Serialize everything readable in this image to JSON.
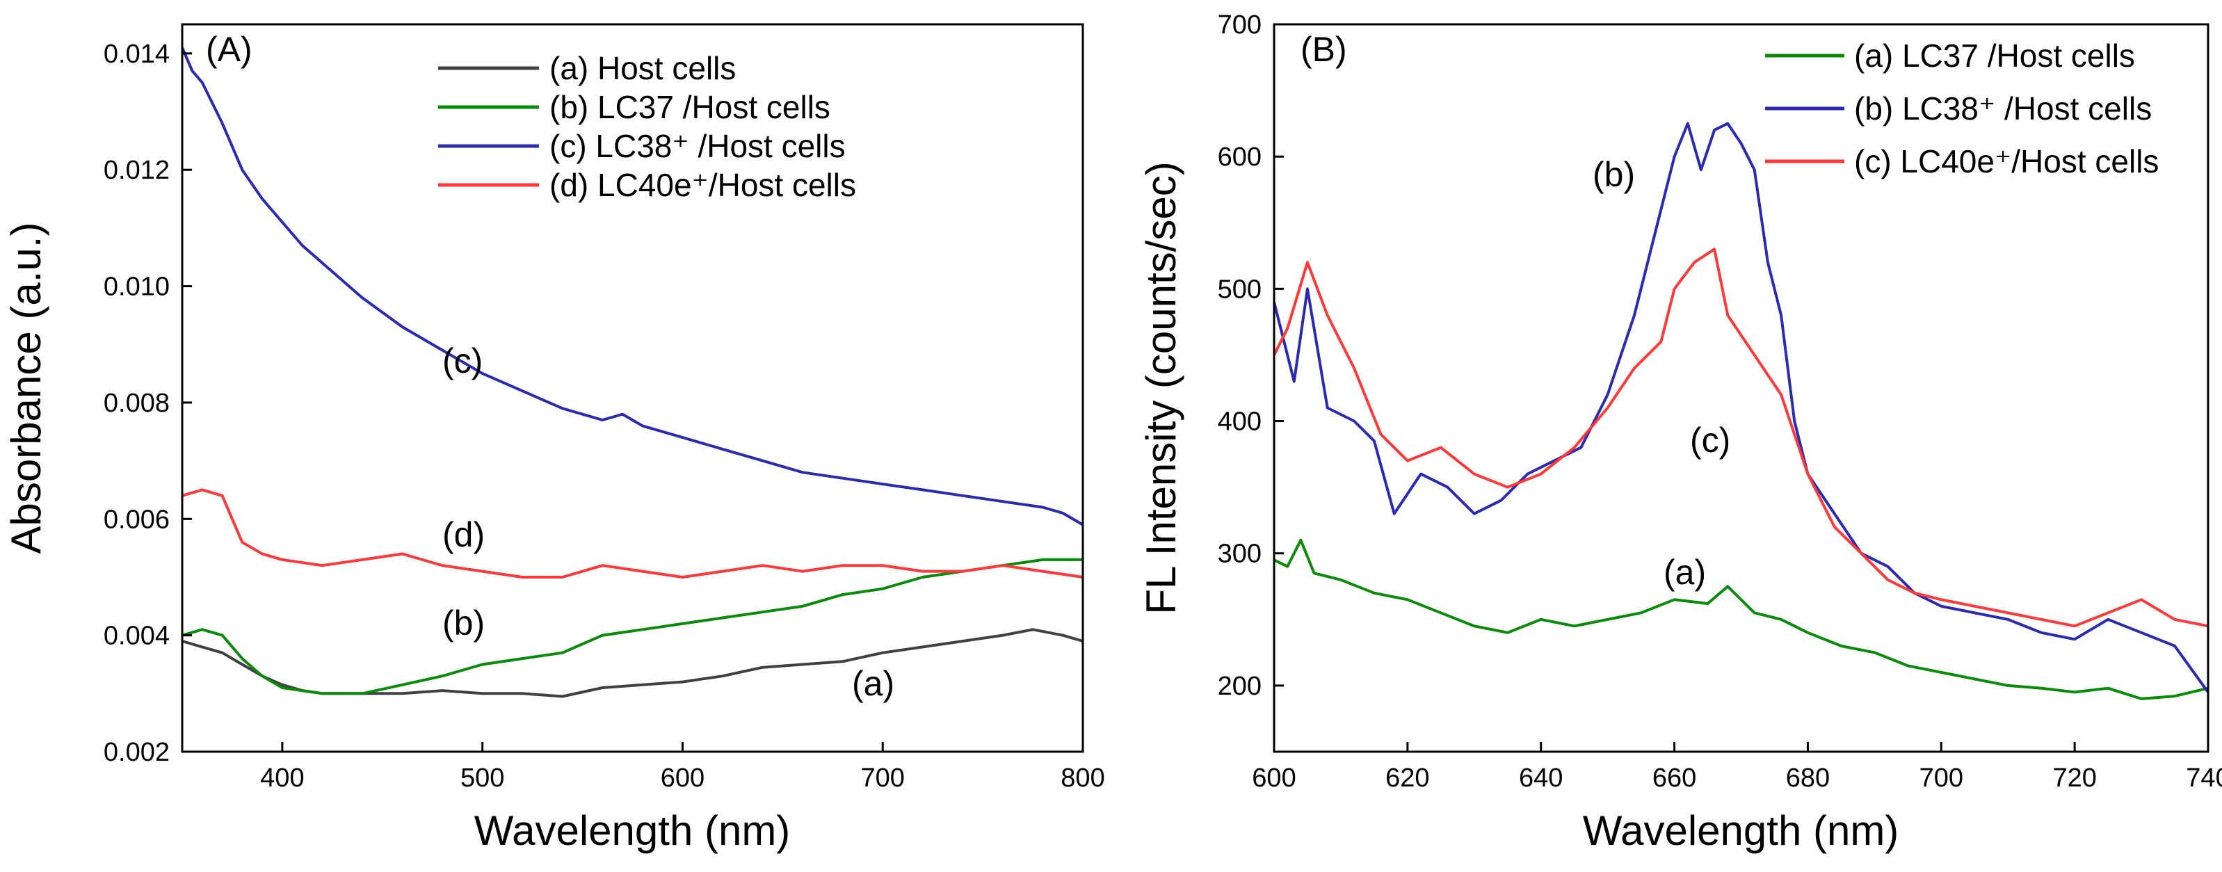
{
  "chart_data": [
    {
      "type": "line",
      "panel_label": "(A)",
      "xlabel": "Wavelength (nm)",
      "ylabel": "Absorbance (a.u.)",
      "xlim": [
        350,
        800
      ],
      "ylim": [
        0.002,
        0.0145
      ],
      "xticks": [
        400,
        500,
        600,
        700,
        800
      ],
      "xtick_labels": [
        "400",
        "500",
        "600",
        "700",
        "800"
      ],
      "yticks": [
        0.002,
        0.004,
        0.006,
        0.008,
        0.01,
        0.012,
        0.014
      ],
      "ytick_labels": [
        "0.002",
        "0.004",
        "0.006",
        "0.008",
        "0.010",
        "0.012",
        "0.014"
      ],
      "legend_position": "top-right",
      "series": [
        {
          "name": "(a) Host cells",
          "color": "#404040",
          "annotation": "(a)",
          "x": [
            350,
            360,
            370,
            380,
            390,
            400,
            410,
            420,
            440,
            460,
            480,
            500,
            520,
            540,
            560,
            580,
            600,
            620,
            640,
            660,
            680,
            700,
            720,
            740,
            760,
            775,
            790,
            800
          ],
          "y": [
            0.0039,
            0.0038,
            0.0037,
            0.0035,
            0.0033,
            0.00315,
            0.00305,
            0.003,
            0.003,
            0.003,
            0.00305,
            0.003,
            0.003,
            0.00295,
            0.0031,
            0.00315,
            0.0032,
            0.0033,
            0.00345,
            0.0035,
            0.00355,
            0.0037,
            0.0038,
            0.0039,
            0.004,
            0.0041,
            0.004,
            0.0039
          ]
        },
        {
          "name": "(b) LC37 /Host cells",
          "color": "#0a8a0a",
          "annotation": "(b)",
          "x": [
            350,
            360,
            370,
            380,
            390,
            400,
            410,
            420,
            440,
            460,
            480,
            500,
            520,
            540,
            560,
            580,
            600,
            620,
            640,
            660,
            680,
            700,
            720,
            740,
            760,
            780,
            800
          ],
          "y": [
            0.004,
            0.0041,
            0.004,
            0.0036,
            0.0033,
            0.0031,
            0.00305,
            0.003,
            0.003,
            0.00315,
            0.0033,
            0.0035,
            0.0036,
            0.0037,
            0.004,
            0.0041,
            0.0042,
            0.0043,
            0.0044,
            0.0045,
            0.0047,
            0.0048,
            0.005,
            0.0051,
            0.0052,
            0.0053,
            0.0053
          ]
        },
        {
          "name": "(c) LC38⁺ /Host cells",
          "color": "#2b2bb0",
          "annotation": "(c)",
          "x": [
            350,
            355,
            360,
            370,
            380,
            390,
            400,
            410,
            420,
            440,
            460,
            480,
            500,
            520,
            540,
            560,
            570,
            580,
            600,
            620,
            640,
            660,
            680,
            700,
            720,
            740,
            760,
            780,
            790,
            800
          ],
          "y": [
            0.0141,
            0.0137,
            0.0135,
            0.0128,
            0.012,
            0.0115,
            0.0111,
            0.0107,
            0.0104,
            0.0098,
            0.0093,
            0.0089,
            0.0085,
            0.0082,
            0.0079,
            0.0077,
            0.0078,
            0.0076,
            0.0074,
            0.0072,
            0.007,
            0.0068,
            0.0067,
            0.0066,
            0.0065,
            0.0064,
            0.0063,
            0.0062,
            0.0061,
            0.0059
          ]
        },
        {
          "name": "(d) LC40e⁺/Host cells",
          "color": "#ff3a3a",
          "annotation": "(d)",
          "x": [
            350,
            360,
            370,
            375,
            380,
            390,
            400,
            420,
            440,
            460,
            480,
            500,
            520,
            540,
            560,
            580,
            600,
            620,
            640,
            660,
            680,
            700,
            720,
            740,
            760,
            780,
            800
          ],
          "y": [
            0.0064,
            0.0065,
            0.0064,
            0.006,
            0.0056,
            0.0054,
            0.0053,
            0.0052,
            0.0053,
            0.0054,
            0.0052,
            0.0051,
            0.005,
            0.005,
            0.0052,
            0.0051,
            0.005,
            0.0051,
            0.0052,
            0.0051,
            0.0052,
            0.0052,
            0.0051,
            0.0051,
            0.0052,
            0.0051,
            0.005
          ]
        }
      ]
    },
    {
      "type": "line",
      "panel_label": "(B)",
      "xlabel": "Wavelength (nm)",
      "ylabel": "FL Intensity (counts/sec)",
      "xlim": [
        600,
        740
      ],
      "ylim": [
        150,
        700
      ],
      "xticks": [
        600,
        620,
        640,
        660,
        680,
        700,
        720,
        740
      ],
      "xtick_labels": [
        "600",
        "620",
        "640",
        "660",
        "680",
        "700",
        "720",
        "740"
      ],
      "yticks": [
        200,
        300,
        400,
        500,
        600,
        700
      ],
      "ytick_labels": [
        "200",
        "300",
        "400",
        "500",
        "600",
        "700"
      ],
      "legend_position": "top-right",
      "series": [
        {
          "name": "(a) LC37 /Host cells",
          "color": "#0a8a0a",
          "annotation": "(a)",
          "x": [
            600,
            602,
            604,
            606,
            610,
            615,
            620,
            625,
            630,
            635,
            640,
            645,
            650,
            655,
            660,
            665,
            668,
            672,
            676,
            680,
            685,
            690,
            695,
            700,
            705,
            710,
            715,
            720,
            725,
            730,
            735,
            740
          ],
          "y": [
            295,
            290,
            310,
            285,
            280,
            270,
            265,
            255,
            245,
            240,
            250,
            245,
            250,
            255,
            265,
            262,
            275,
            255,
            250,
            240,
            230,
            225,
            215,
            210,
            205,
            200,
            198,
            195,
            198,
            190,
            192,
            198
          ]
        },
        {
          "name": "(b) LC38⁺ /Host cells",
          "color": "#2b2bb0",
          "annotation": "(b)",
          "x": [
            600,
            603,
            605,
            608,
            612,
            615,
            618,
            622,
            626,
            630,
            634,
            638,
            642,
            646,
            650,
            654,
            656,
            658,
            660,
            662,
            664,
            666,
            668,
            670,
            672,
            674,
            676,
            678,
            680,
            684,
            688,
            692,
            696,
            700,
            705,
            710,
            715,
            720,
            725,
            730,
            735,
            740
          ],
          "y": [
            490,
            430,
            500,
            410,
            400,
            385,
            330,
            360,
            350,
            330,
            340,
            360,
            370,
            380,
            420,
            480,
            520,
            560,
            600,
            625,
            590,
            620,
            625,
            610,
            590,
            520,
            480,
            400,
            360,
            330,
            300,
            290,
            270,
            260,
            255,
            250,
            240,
            235,
            250,
            240,
            230,
            195
          ]
        },
        {
          "name": "(c) LC40e⁺/Host cells",
          "color": "#ff3a3a",
          "annotation": "(c)",
          "x": [
            600,
            602,
            605,
            608,
            612,
            616,
            620,
            625,
            630,
            635,
            640,
            645,
            650,
            654,
            658,
            660,
            663,
            666,
            668,
            672,
            676,
            680,
            684,
            688,
            692,
            696,
            700,
            705,
            710,
            715,
            720,
            725,
            730,
            735,
            740
          ],
          "y": [
            450,
            470,
            520,
            480,
            440,
            390,
            370,
            380,
            360,
            350,
            360,
            380,
            410,
            440,
            460,
            500,
            520,
            530,
            480,
            450,
            420,
            360,
            320,
            300,
            280,
            270,
            265,
            260,
            255,
            250,
            245,
            255,
            265,
            250,
            245
          ]
        }
      ]
    }
  ]
}
